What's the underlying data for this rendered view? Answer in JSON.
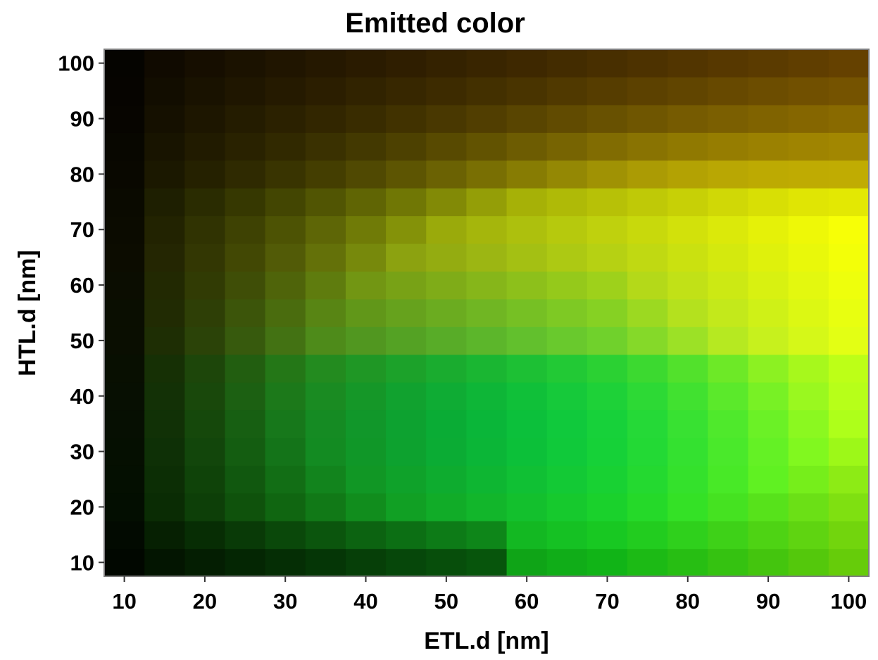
{
  "chart_data": {
    "type": "heatmap",
    "title": "Emitted color",
    "xlabel": "ETL.d [nm]",
    "ylabel": "HTL.d [nm]",
    "x": [
      10,
      15,
      20,
      25,
      30,
      35,
      40,
      45,
      50,
      55,
      60,
      65,
      70,
      75,
      80,
      85,
      90,
      95,
      100
    ],
    "y": [
      10,
      15,
      20,
      25,
      30,
      35,
      40,
      45,
      50,
      55,
      60,
      65,
      70,
      75,
      80,
      85,
      90,
      95,
      100
    ],
    "xlim": [
      7.5,
      102.5
    ],
    "ylim": [
      7.5,
      102.5
    ],
    "x_ticks": [
      "10",
      "20",
      "30",
      "40",
      "50",
      "60",
      "70",
      "80",
      "90",
      "100"
    ],
    "y_ticks": [
      "10",
      "20",
      "30",
      "40",
      "50",
      "60",
      "70",
      "80",
      "90",
      "100"
    ],
    "color_encoding": "cell fill = emitted RGB color",
    "anchor_colors": {
      "top_left": "#1a1a05",
      "top_right": "#948f00",
      "bottom_left": "#030602",
      "bottom_right": "#7dff20",
      "peak_yellow_near_x75_y60": "#faff00",
      "peak_green_near_x55_y35": "#00ff60"
    },
    "grid": false,
    "legend": "none"
  }
}
